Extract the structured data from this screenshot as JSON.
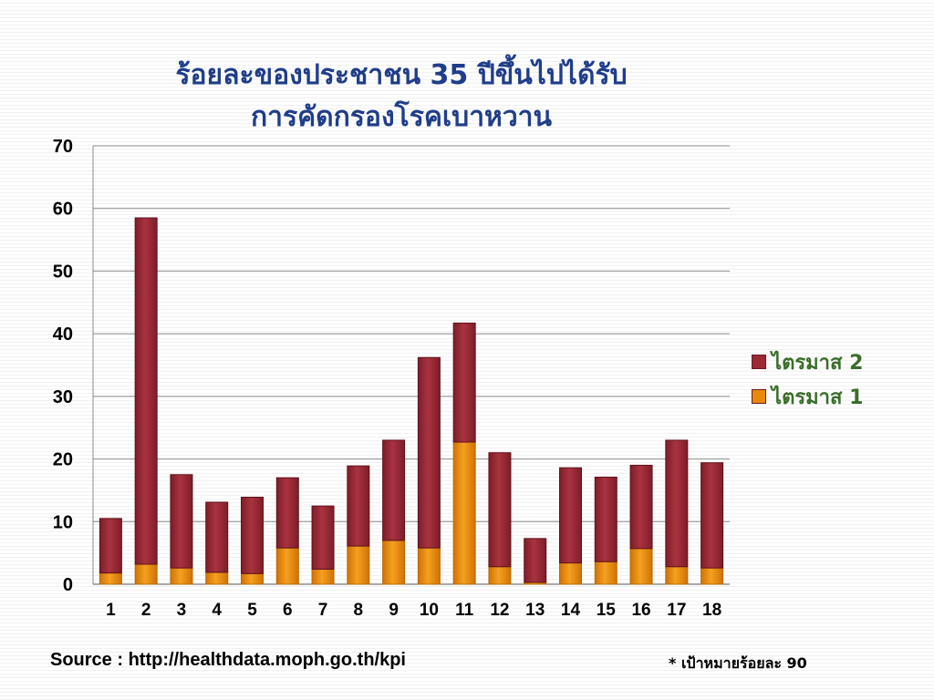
{
  "chart_data": {
    "type": "bar",
    "stacked": true,
    "title_lines": [
      "ร้อยละของประชาชน 35 ปีขึ้นไปได้รับ",
      "การคัดกรองโรคเบาหวาน"
    ],
    "categories": [
      "1",
      "2",
      "3",
      "4",
      "5",
      "6",
      "7",
      "8",
      "9",
      "10",
      "11",
      "12",
      "13",
      "14",
      "15",
      "16",
      "17",
      "18"
    ],
    "series": [
      {
        "name": "ไตรมาส 1",
        "color": "#e8890c",
        "values": [
          1.8,
          3.2,
          2.6,
          1.9,
          1.7,
          5.8,
          2.4,
          6.1,
          7.0,
          5.8,
          22.7,
          2.8,
          0.3,
          3.4,
          3.6,
          5.7,
          2.8,
          2.6
        ]
      },
      {
        "name": "ไตรมาส 2",
        "color": "#9b2a35",
        "values": [
          8.7,
          55.3,
          14.9,
          11.2,
          12.2,
          11.2,
          10.1,
          12.8,
          16.0,
          30.4,
          19.0,
          18.2,
          7.0,
          15.2,
          13.5,
          13.3,
          20.2,
          16.8
        ]
      }
    ],
    "ylim": [
      0,
      70
    ],
    "yticks": [
      0,
      10,
      20,
      30,
      40,
      50,
      60,
      70
    ],
    "grid": true,
    "legend_position": "right"
  },
  "legend_items": [
    {
      "label": "ไตรมาส 2",
      "color": "#9b2a35"
    },
    {
      "label": "ไตรมาส 1",
      "color": "#e8890c"
    }
  ],
  "source_text": "Source : http://healthdata.moph.go.th/kpi",
  "target_text": "* เป้าหมายร้อยละ 90"
}
